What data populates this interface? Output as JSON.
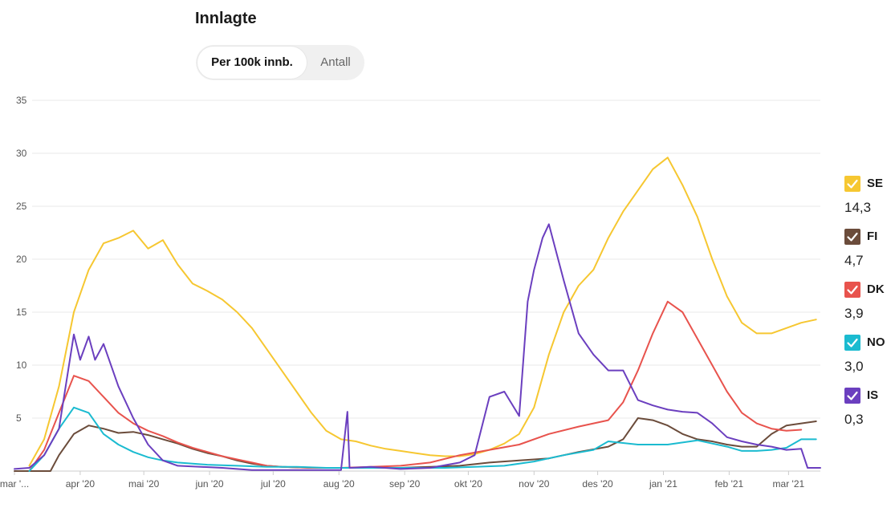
{
  "header": {
    "title": "Innlagte"
  },
  "toggle": {
    "options": [
      "Per 100k innb.",
      "Antall"
    ],
    "selected": "Per 100k innb."
  },
  "colors": {
    "SE": "#f6c731",
    "FI": "#6b4c3b",
    "DK": "#e8534d",
    "NO": "#1bbbd0",
    "IS": "#6b3fbf",
    "grid": "#e8e8e8",
    "axis_text": "#555555"
  },
  "legend": [
    {
      "code": "SE",
      "value": "14,3",
      "color": "#f6c731",
      "icon": "check-icon"
    },
    {
      "code": "FI",
      "value": "4,7",
      "color": "#6b4c3b",
      "icon": "check-icon"
    },
    {
      "code": "DK",
      "value": "3,9",
      "color": "#e8534d",
      "icon": "check-icon"
    },
    {
      "code": "NO",
      "value": "3,0",
      "color": "#1bbbd0",
      "icon": "check-icon"
    },
    {
      "code": "IS",
      "value": "0,3",
      "color": "#6b3fbf",
      "icon": "check-icon"
    }
  ],
  "chart_data": {
    "type": "line",
    "title": "Innlagte",
    "xlabel": "",
    "ylabel": "",
    "ylim": [
      0,
      35
    ],
    "yticks": [
      5,
      10,
      15,
      20,
      25,
      30,
      35
    ],
    "xlim": [
      "2020-03-01",
      "2021-03-16"
    ],
    "xticks": [
      {
        "date": "2020-03-01",
        "label": "mar '..."
      },
      {
        "date": "2020-04-01",
        "label": "apr '20"
      },
      {
        "date": "2020-05-01",
        "label": "mai '20"
      },
      {
        "date": "2020-06-01",
        "label": "jun '20"
      },
      {
        "date": "2020-07-01",
        "label": "jul '20"
      },
      {
        "date": "2020-08-01",
        "label": "aug '20"
      },
      {
        "date": "2020-09-01",
        "label": "sep '20"
      },
      {
        "date": "2020-10-01",
        "label": "okt '20"
      },
      {
        "date": "2020-11-01",
        "label": "nov '20"
      },
      {
        "date": "2020-12-01",
        "label": "des '20"
      },
      {
        "date": "2021-01-01",
        "label": "jan '21"
      },
      {
        "date": "2021-02-01",
        "label": "feb '21"
      },
      {
        "date": "2021-03-01",
        "label": "mar '21"
      }
    ],
    "grid": true,
    "legend_position": "right",
    "series": [
      {
        "name": "SE",
        "color": "#f6c731",
        "points": [
          [
            "2020-03-08",
            0.5
          ],
          [
            "2020-03-15",
            3
          ],
          [
            "2020-03-22",
            8
          ],
          [
            "2020-03-29",
            15
          ],
          [
            "2020-04-05",
            19
          ],
          [
            "2020-04-12",
            21.5
          ],
          [
            "2020-04-19",
            22
          ],
          [
            "2020-04-26",
            22.7
          ],
          [
            "2020-05-03",
            21
          ],
          [
            "2020-05-10",
            21.8
          ],
          [
            "2020-05-17",
            19.5
          ],
          [
            "2020-05-24",
            17.7
          ],
          [
            "2020-05-31",
            17
          ],
          [
            "2020-06-07",
            16.2
          ],
          [
            "2020-06-14",
            15
          ],
          [
            "2020-06-21",
            13.5
          ],
          [
            "2020-06-28",
            11.5
          ],
          [
            "2020-07-05",
            9.5
          ],
          [
            "2020-07-12",
            7.5
          ],
          [
            "2020-07-19",
            5.5
          ],
          [
            "2020-07-26",
            3.8
          ],
          [
            "2020-08-02",
            3
          ],
          [
            "2020-08-09",
            2.8
          ],
          [
            "2020-08-16",
            2.4
          ],
          [
            "2020-08-23",
            2.1
          ],
          [
            "2020-08-30",
            1.9
          ],
          [
            "2020-09-06",
            1.7
          ],
          [
            "2020-09-13",
            1.5
          ],
          [
            "2020-09-20",
            1.4
          ],
          [
            "2020-09-27",
            1.4
          ],
          [
            "2020-10-04",
            1.6
          ],
          [
            "2020-10-11",
            2
          ],
          [
            "2020-10-18",
            2.6
          ],
          [
            "2020-10-25",
            3.5
          ],
          [
            "2020-11-01",
            6
          ],
          [
            "2020-11-08",
            11
          ],
          [
            "2020-11-15",
            15
          ],
          [
            "2020-11-22",
            17.5
          ],
          [
            "2020-11-29",
            19
          ],
          [
            "2020-12-06",
            22
          ],
          [
            "2020-12-13",
            24.5
          ],
          [
            "2020-12-20",
            26.5
          ],
          [
            "2020-12-27",
            28.5
          ],
          [
            "2021-01-03",
            29.6
          ],
          [
            "2021-01-10",
            27
          ],
          [
            "2021-01-17",
            24
          ],
          [
            "2021-01-24",
            20
          ],
          [
            "2021-01-31",
            16.5
          ],
          [
            "2021-02-07",
            14
          ],
          [
            "2021-02-14",
            13
          ],
          [
            "2021-02-21",
            13
          ],
          [
            "2021-02-28",
            13.5
          ],
          [
            "2021-03-07",
            14
          ],
          [
            "2021-03-14",
            14.3
          ]
        ]
      },
      {
        "name": "FI",
        "color": "#6b4c3b",
        "points": [
          [
            "2020-03-01",
            0
          ],
          [
            "2020-03-18",
            0
          ],
          [
            "2020-03-22",
            1.5
          ],
          [
            "2020-03-29",
            3.5
          ],
          [
            "2020-04-05",
            4.3
          ],
          [
            "2020-04-12",
            4
          ],
          [
            "2020-04-19",
            3.6
          ],
          [
            "2020-04-26",
            3.7
          ],
          [
            "2020-05-03",
            3.4
          ],
          [
            "2020-05-10",
            3
          ],
          [
            "2020-05-17",
            2.6
          ],
          [
            "2020-05-24",
            2.1
          ],
          [
            "2020-05-31",
            1.7
          ],
          [
            "2020-06-07",
            1.4
          ],
          [
            "2020-06-14",
            1
          ],
          [
            "2020-06-21",
            0.7
          ],
          [
            "2020-06-28",
            0.5
          ],
          [
            "2020-07-05",
            0.4
          ],
          [
            "2020-07-19",
            0.3
          ],
          [
            "2020-08-02",
            0.3
          ],
          [
            "2020-08-16",
            0.3
          ],
          [
            "2020-08-30",
            0.3
          ],
          [
            "2020-09-13",
            0.4
          ],
          [
            "2020-09-27",
            0.5
          ],
          [
            "2020-10-11",
            0.8
          ],
          [
            "2020-10-25",
            1
          ],
          [
            "2020-11-08",
            1.2
          ],
          [
            "2020-11-22",
            1.8
          ],
          [
            "2020-12-06",
            2.3
          ],
          [
            "2020-12-13",
            3
          ],
          [
            "2020-12-20",
            5
          ],
          [
            "2020-12-27",
            4.8
          ],
          [
            "2021-01-03",
            4.3
          ],
          [
            "2021-01-10",
            3.5
          ],
          [
            "2021-01-17",
            3
          ],
          [
            "2021-01-24",
            2.8
          ],
          [
            "2021-01-31",
            2.5
          ],
          [
            "2021-02-07",
            2.3
          ],
          [
            "2021-02-14",
            2.3
          ],
          [
            "2021-02-21",
            3.5
          ],
          [
            "2021-02-28",
            4.3
          ],
          [
            "2021-03-07",
            4.5
          ],
          [
            "2021-03-14",
            4.7
          ]
        ]
      },
      {
        "name": "DK",
        "color": "#e8534d",
        "points": [
          [
            "2020-03-08",
            0
          ],
          [
            "2020-03-15",
            2
          ],
          [
            "2020-03-22",
            5.5
          ],
          [
            "2020-03-29",
            9
          ],
          [
            "2020-04-05",
            8.5
          ],
          [
            "2020-04-12",
            7
          ],
          [
            "2020-04-19",
            5.5
          ],
          [
            "2020-04-26",
            4.5
          ],
          [
            "2020-05-03",
            3.8
          ],
          [
            "2020-05-10",
            3.3
          ],
          [
            "2020-05-17",
            2.7
          ],
          [
            "2020-05-24",
            2.2
          ],
          [
            "2020-05-31",
            1.8
          ],
          [
            "2020-06-07",
            1.4
          ],
          [
            "2020-06-14",
            1.1
          ],
          [
            "2020-06-21",
            0.8
          ],
          [
            "2020-06-28",
            0.5
          ],
          [
            "2020-07-05",
            0.4
          ],
          [
            "2020-07-19",
            0.3
          ],
          [
            "2020-08-02",
            0.3
          ],
          [
            "2020-08-16",
            0.4
          ],
          [
            "2020-08-30",
            0.5
          ],
          [
            "2020-09-13",
            0.8
          ],
          [
            "2020-09-27",
            1.5
          ],
          [
            "2020-10-11",
            2
          ],
          [
            "2020-10-25",
            2.5
          ],
          [
            "2020-11-08",
            3.5
          ],
          [
            "2020-11-22",
            4.2
          ],
          [
            "2020-12-06",
            4.8
          ],
          [
            "2020-12-13",
            6.5
          ],
          [
            "2020-12-20",
            9.5
          ],
          [
            "2020-12-27",
            13
          ],
          [
            "2021-01-03",
            16
          ],
          [
            "2021-01-10",
            15
          ],
          [
            "2021-01-17",
            12.5
          ],
          [
            "2021-01-24",
            10
          ],
          [
            "2021-01-31",
            7.5
          ],
          [
            "2021-02-07",
            5.5
          ],
          [
            "2021-02-14",
            4.5
          ],
          [
            "2021-02-21",
            4
          ],
          [
            "2021-02-28",
            3.8
          ],
          [
            "2021-03-07",
            3.9
          ]
        ]
      },
      {
        "name": "NO",
        "color": "#1bbbd0",
        "points": [
          [
            "2020-03-08",
            0
          ],
          [
            "2020-03-15",
            1.5
          ],
          [
            "2020-03-22",
            4
          ],
          [
            "2020-03-29",
            6
          ],
          [
            "2020-04-05",
            5.5
          ],
          [
            "2020-04-12",
            3.5
          ],
          [
            "2020-04-19",
            2.5
          ],
          [
            "2020-04-26",
            1.8
          ],
          [
            "2020-05-03",
            1.3
          ],
          [
            "2020-05-10",
            1
          ],
          [
            "2020-05-17",
            0.8
          ],
          [
            "2020-05-24",
            0.7
          ],
          [
            "2020-05-31",
            0.6
          ],
          [
            "2020-06-14",
            0.5
          ],
          [
            "2020-06-28",
            0.4
          ],
          [
            "2020-07-12",
            0.4
          ],
          [
            "2020-07-26",
            0.3
          ],
          [
            "2020-08-09",
            0.3
          ],
          [
            "2020-08-23",
            0.3
          ],
          [
            "2020-09-06",
            0.3
          ],
          [
            "2020-09-20",
            0.3
          ],
          [
            "2020-10-04",
            0.4
          ],
          [
            "2020-10-18",
            0.5
          ],
          [
            "2020-11-01",
            0.9
          ],
          [
            "2020-11-15",
            1.5
          ],
          [
            "2020-11-29",
            2
          ],
          [
            "2020-12-06",
            2.8
          ],
          [
            "2020-12-20",
            2.5
          ],
          [
            "2021-01-03",
            2.5
          ],
          [
            "2021-01-17",
            2.9
          ],
          [
            "2021-01-31",
            2.3
          ],
          [
            "2021-02-07",
            1.9
          ],
          [
            "2021-02-14",
            1.9
          ],
          [
            "2021-02-21",
            2
          ],
          [
            "2021-02-28",
            2.2
          ],
          [
            "2021-03-07",
            3
          ],
          [
            "2021-03-14",
            3
          ]
        ]
      },
      {
        "name": "IS",
        "color": "#6b3fbf",
        "points": [
          [
            "2020-03-01",
            0.2
          ],
          [
            "2020-03-08",
            0.3
          ],
          [
            "2020-03-15",
            1.5
          ],
          [
            "2020-03-22",
            4
          ],
          [
            "2020-03-29",
            12.9
          ],
          [
            "2020-04-01",
            10.5
          ],
          [
            "2020-04-05",
            12.7
          ],
          [
            "2020-04-08",
            10.5
          ],
          [
            "2020-04-12",
            12
          ],
          [
            "2020-04-19",
            8
          ],
          [
            "2020-04-26",
            5
          ],
          [
            "2020-05-03",
            2.5
          ],
          [
            "2020-05-10",
            1
          ],
          [
            "2020-05-17",
            0.5
          ],
          [
            "2020-06-07",
            0.3
          ],
          [
            "2020-06-21",
            0.1
          ],
          [
            "2020-07-05",
            0.1
          ],
          [
            "2020-07-19",
            0.1
          ],
          [
            "2020-08-02",
            0.1
          ],
          [
            "2020-08-05",
            5.6
          ],
          [
            "2020-08-06",
            0.3
          ],
          [
            "2020-08-16",
            0.4
          ],
          [
            "2020-08-30",
            0.2
          ],
          [
            "2020-09-13",
            0.3
          ],
          [
            "2020-09-27",
            0.8
          ],
          [
            "2020-10-04",
            1.5
          ],
          [
            "2020-10-11",
            7
          ],
          [
            "2020-10-18",
            7.5
          ],
          [
            "2020-10-25",
            5.2
          ],
          [
            "2020-10-29",
            16
          ],
          [
            "2020-11-01",
            19
          ],
          [
            "2020-11-05",
            22
          ],
          [
            "2020-11-08",
            23.3
          ],
          [
            "2020-11-15",
            18
          ],
          [
            "2020-11-22",
            13
          ],
          [
            "2020-11-29",
            11
          ],
          [
            "2020-12-06",
            9.5
          ],
          [
            "2020-12-13",
            9.5
          ],
          [
            "2020-12-20",
            6.7
          ],
          [
            "2020-12-27",
            6.2
          ],
          [
            "2021-01-03",
            5.8
          ],
          [
            "2021-01-10",
            5.6
          ],
          [
            "2021-01-17",
            5.5
          ],
          [
            "2021-01-24",
            4.5
          ],
          [
            "2021-01-31",
            3.2
          ],
          [
            "2021-02-07",
            2.8
          ],
          [
            "2021-02-14",
            2.5
          ],
          [
            "2021-02-21",
            2.3
          ],
          [
            "2021-02-28",
            2
          ],
          [
            "2021-03-07",
            2.1
          ],
          [
            "2021-03-10",
            0.3
          ],
          [
            "2021-03-16",
            0.3
          ]
        ]
      }
    ]
  }
}
